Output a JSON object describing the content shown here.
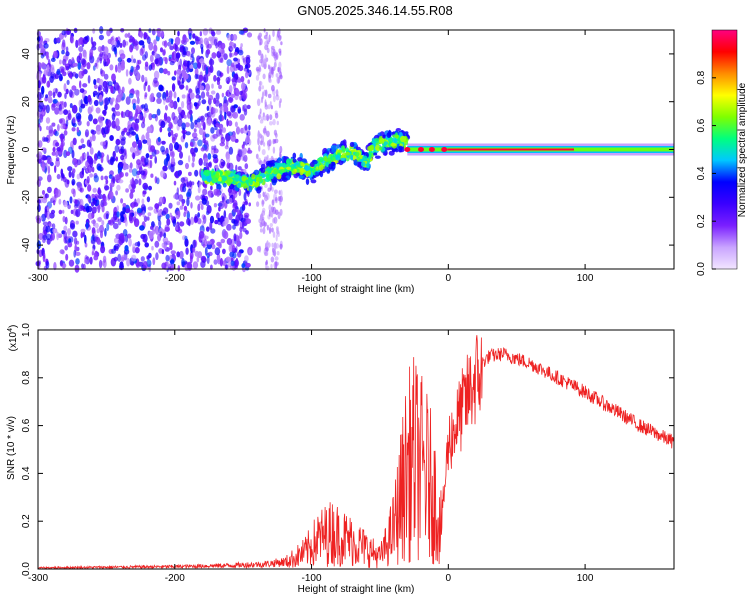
{
  "title": "GN05.2025.346.14.55.R08",
  "colors": {
    "snr_line": "#ee2222",
    "colormap": [
      "#f2e6ff",
      "#c9a4ff",
      "#7a1fff",
      "#3a00ff",
      "#0000ff",
      "#00c8ff",
      "#00ff7f",
      "#7fff00",
      "#ffff00",
      "#ff8c00",
      "#ff0000",
      "#ff0080"
    ]
  },
  "chart_data": [
    {
      "type": "heatmap",
      "title": "GN05.2025.346.14.55.R08",
      "xlabel": "Height of straight line (km)",
      "ylabel": "Frequency (Hz)",
      "xlim": [
        -300,
        165
      ],
      "ylim": [
        -50,
        50
      ],
      "x_ticks": [
        -300,
        -200,
        -100,
        0,
        100
      ],
      "x_tick_labels": [
        "-300",
        "-200",
        "-100",
        "0",
        "100"
      ],
      "y_ticks": [
        -40,
        -20,
        0,
        20,
        40
      ],
      "y_tick_labels": [
        "-40",
        "-20",
        "0",
        "20",
        "40"
      ],
      "colorbar": {
        "label": "Normalized spectral amplitude",
        "range": [
          0,
          1
        ],
        "ticks": [
          0.0,
          0.2,
          0.4,
          0.6,
          0.8
        ],
        "tick_labels": [
          "0.0",
          "0.2",
          "0.4",
          "0.6",
          "0.8"
        ]
      },
      "features": {
        "noise_region_x": [
          -300,
          -145
        ],
        "faint_noise_band_x": [
          -140,
          -122
        ],
        "trace_points": [
          [
            -180,
            -11
          ],
          [
            -160,
            -12
          ],
          [
            -145,
            -14
          ],
          [
            -130,
            -10
          ],
          [
            -115,
            -7
          ],
          [
            -100,
            -9
          ],
          [
            -90,
            -5
          ],
          [
            -80,
            -2
          ],
          [
            -70,
            -1
          ],
          [
            -60,
            -6
          ],
          [
            -55,
            1
          ],
          [
            -45,
            3
          ],
          [
            -35,
            4
          ],
          [
            -25,
            1
          ],
          [
            -15,
            0
          ],
          [
            -5,
            0
          ],
          [
            0,
            0
          ],
          [
            20,
            0
          ],
          [
            60,
            0
          ],
          [
            100,
            0
          ],
          [
            140,
            0
          ],
          [
            165,
            0
          ]
        ],
        "carrier_start_x": -30,
        "carrier_frequency": 0
      }
    },
    {
      "type": "line",
      "xlabel": "Height of straight line (km)",
      "ylabel": "SNR (10 * v/v)",
      "y_multiplier_label": "(x10",
      "y_multiplier_exp": "4",
      "xlim": [
        -300,
        165
      ],
      "ylim": [
        0,
        1.0
      ],
      "x_ticks": [
        -300,
        -200,
        -100,
        0,
        100
      ],
      "x_tick_labels": [
        "-300",
        "-200",
        "-100",
        "0",
        "100"
      ],
      "y_ticks": [
        0,
        0.2,
        0.4,
        0.6,
        0.8,
        1.0
      ],
      "y_tick_labels": [
        "0.0",
        "0.2",
        "0.4",
        "0.6",
        "0.8",
        "1.0"
      ],
      "envelope": {
        "x": [
          -300,
          -200,
          -160,
          -135,
          -120,
          -105,
          -95,
          -85,
          -75,
          -65,
          -55,
          -50,
          -45,
          -40,
          -35,
          -30,
          -25,
          -20,
          -15,
          -10,
          -5,
          0,
          10,
          20,
          30,
          40,
          60,
          80,
          100,
          120,
          140,
          165
        ],
        "y": [
          0.005,
          0.01,
          0.015,
          0.02,
          0.03,
          0.08,
          0.15,
          0.18,
          0.15,
          0.12,
          0.08,
          0.06,
          0.12,
          0.2,
          0.35,
          0.5,
          0.55,
          0.5,
          0.45,
          0.35,
          0.2,
          0.55,
          0.7,
          0.84,
          0.89,
          0.9,
          0.86,
          0.8,
          0.74,
          0.67,
          0.6,
          0.53
        ]
      }
    }
  ]
}
